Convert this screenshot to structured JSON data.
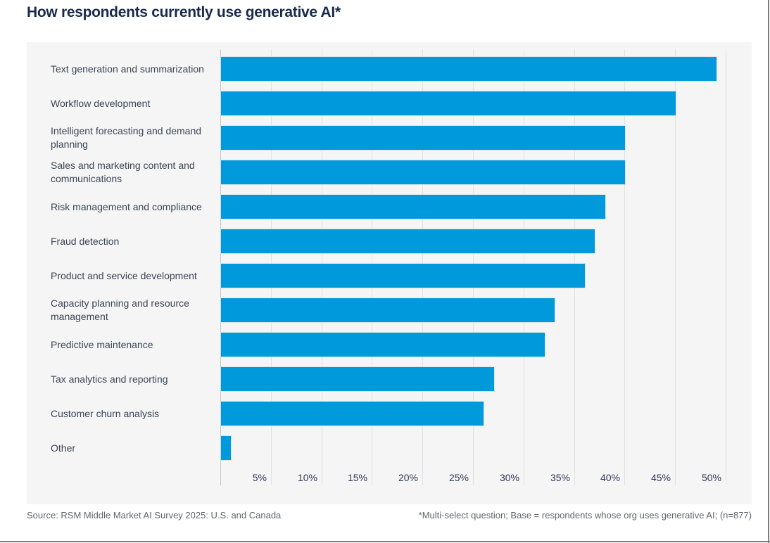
{
  "title": "How respondents currently use generative AI*",
  "footer": {
    "source": "Source: RSM Middle Market AI Survey 2025: U.S. and Canada",
    "note": "*Multi-select question; Base = respondents whose org uses generative AI; (n=877)"
  },
  "colors": {
    "bar": "#0099DC",
    "panel_bg": "#F5F5F5",
    "title_text": "#18294B",
    "label_text": "#3A4557",
    "tick_text": "#2E3A55",
    "footer_text": "#63666A",
    "gridline": "#E2E2E4",
    "axis_line": "#C6C6C8",
    "frame_border": "#7E7E7E"
  },
  "chart_data": {
    "type": "bar",
    "orientation": "horizontal",
    "title": "How respondents currently use generative AI*",
    "categories": [
      "Text generation and summarization",
      "Workflow development",
      "Intelligent forecasting and demand planning",
      "Sales and marketing content and communications",
      "Risk management and compliance",
      "Fraud detection",
      "Product and service development",
      "Capacity planning and resource management",
      "Predictive maintenance",
      "Tax analytics and reporting",
      "Customer churn analysis",
      "Other"
    ],
    "values": [
      49,
      45,
      40,
      40,
      38,
      37,
      36,
      33,
      32,
      27,
      26,
      1
    ],
    "value_suffix": "%",
    "xticks": {
      "labels": [
        "5%",
        "10%",
        "15%",
        "20%",
        "25%",
        "30%",
        "35%",
        "40%",
        "45%",
        "50%"
      ],
      "values": [
        5,
        10,
        15,
        20,
        25,
        30,
        35,
        40,
        45,
        50
      ]
    },
    "xlim": [
      0,
      52.5
    ],
    "grid": true,
    "legend": false
  }
}
